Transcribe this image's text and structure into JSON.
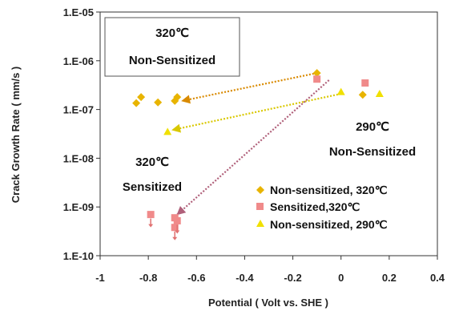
{
  "chart_data": {
    "type": "scatter",
    "title": "",
    "xlabel": "Potential ( Volt vs. SHE )",
    "ylabel": "Crack Growth Rate ( mm/s )",
    "xlim": [
      -1,
      0.4
    ],
    "ylim": [
      1e-10,
      1e-05
    ],
    "y_scale": "log",
    "grid": false,
    "legend_position": "lower-right",
    "x_ticks": [
      "-1",
      "-0.8",
      "-0.6",
      "-0.4",
      "-0.2",
      "0",
      "0.2",
      "0.4"
    ],
    "y_ticks": [
      "1.E-10",
      "1.E-09",
      "1.E-08",
      "1.E-07",
      "1.E-06",
      "1.E-05"
    ],
    "series": [
      {
        "name": "Non-sensitized, 320℃",
        "marker": "diamond",
        "color": "#e8b400",
        "points": [
          {
            "x": -0.85,
            "y": 1.35e-07
          },
          {
            "x": -0.83,
            "y": 1.8e-07
          },
          {
            "x": -0.76,
            "y": 1.4e-07
          },
          {
            "x": -0.69,
            "y": 1.5e-07
          },
          {
            "x": -0.68,
            "y": 1.8e-07
          },
          {
            "x": -0.1,
            "y": 5.6e-07
          },
          {
            "x": 0.09,
            "y": 2e-07
          }
        ]
      },
      {
        "name": "Sensitized,320℃",
        "marker": "square",
        "color": "#f08a8a",
        "points": [
          {
            "x": -0.79,
            "y": 7e-10
          },
          {
            "x": -0.69,
            "y": 6e-10
          },
          {
            "x": -0.69,
            "y": 3.8e-10
          },
          {
            "x": -0.68,
            "y": 5.2e-10
          },
          {
            "x": -0.1,
            "y": 4.2e-07
          },
          {
            "x": 0.1,
            "y": 3.5e-07
          }
        ]
      },
      {
        "name": "Non-sensitized, 290℃",
        "marker": "triangle",
        "color": "#f0e000",
        "points": [
          {
            "x": -0.72,
            "y": 3.5e-08
          },
          {
            "x": 0.0,
            "y": 2.3e-07
          },
          {
            "x": 0.16,
            "y": 2.1e-07
          }
        ]
      }
    ],
    "arrows": [
      {
        "from": [
          -0.1,
          5.6e-07
        ],
        "to": [
          -0.66,
          1.5e-07
        ],
        "color": "#d98a00"
      },
      {
        "from": [
          0.0,
          2.1e-07
        ],
        "to": [
          -0.7,
          3.8e-08
        ],
        "color": "#d9c800"
      },
      {
        "from": [
          -0.05,
          4e-07
        ],
        "to": [
          -0.68,
          7e-10
        ],
        "color": "#b0607a"
      }
    ],
    "annotations": [
      {
        "text_line1": "320℃",
        "text_line2": "Non-Sensitized",
        "boxed": true
      },
      {
        "text_line1": "290℃",
        "text_line2": "Non-Sensitized",
        "boxed": false
      },
      {
        "text_line1": "320℃",
        "text_line2": "Sensitized",
        "boxed": false
      }
    ]
  }
}
